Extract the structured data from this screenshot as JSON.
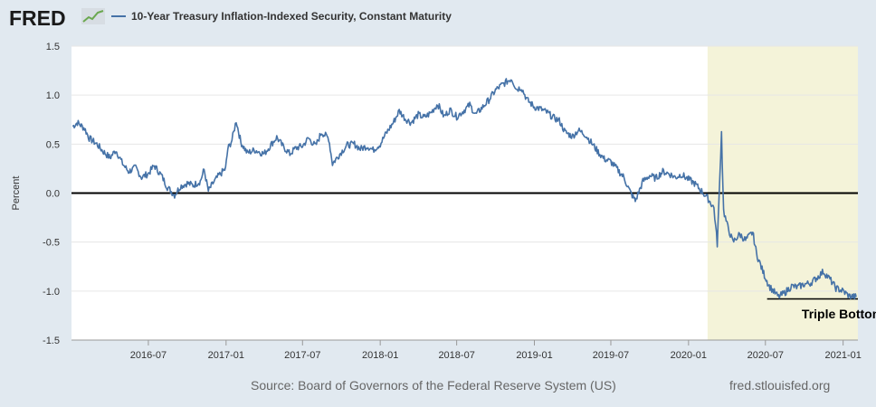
{
  "header": {
    "logo_text": "FRED",
    "logo_icon": "trend-chart-icon"
  },
  "footer": {
    "source": "Source: Board of Governors of the Federal Reserve System (US)",
    "site": "fred.stlouisfed.org"
  },
  "colors": {
    "series": "#4572a7",
    "recession_shade": "#f4f3d9",
    "plot_bg": "#ffffff",
    "page_bg": "#e1e9f0"
  },
  "chart_data": {
    "type": "line",
    "title": "",
    "xlabel": "",
    "ylabel": "Percent",
    "x_range": [
      "2016-01-01",
      "2021-02-05"
    ],
    "ylim": [
      -1.5,
      1.5
    ],
    "y_ticks": [
      1.5,
      1.0,
      0.5,
      0.0,
      -0.5,
      -1.0,
      -1.5
    ],
    "y_tick_labels": [
      "1.5",
      "1.0",
      "0.5",
      "0.0",
      "-0.5",
      "-1.0",
      "-1.5"
    ],
    "x_ticks": [
      "2016-07-01",
      "2017-01-01",
      "2017-07-01",
      "2018-01-01",
      "2018-07-01",
      "2019-01-01",
      "2019-07-01",
      "2020-01-01",
      "2020-07-01",
      "2021-01-01"
    ],
    "x_tick_labels": [
      "2016-07",
      "2017-01",
      "2017-07",
      "2018-01",
      "2018-07",
      "2019-01",
      "2019-07",
      "2020-01",
      "2020-07",
      "2021-01"
    ],
    "grid": "horizontal",
    "shaded_region": {
      "start": "2020-02-15",
      "end": "2021-02-05"
    },
    "reference_lines": [
      {
        "y": 0.0,
        "from": "2016-01-01",
        "to": "2021-02-05"
      },
      {
        "y": -1.08,
        "from": "2020-07-05",
        "to": "2021-02-05"
      }
    ],
    "annotations": [
      {
        "text": "Triple Bottom?",
        "x": "2020-09-25",
        "y": -1.28
      }
    ],
    "series": [
      {
        "name": "10-Year Treasury Inflation-Indexed Security, Constant Maturity",
        "points": [
          [
            "2016-01-04",
            0.68
          ],
          [
            "2016-01-15",
            0.72
          ],
          [
            "2016-02-01",
            0.66
          ],
          [
            "2016-02-12",
            0.56
          ],
          [
            "2016-03-01",
            0.5
          ],
          [
            "2016-03-15",
            0.43
          ],
          [
            "2016-04-01",
            0.36
          ],
          [
            "2016-04-15",
            0.44
          ],
          [
            "2016-05-01",
            0.3
          ],
          [
            "2016-05-15",
            0.22
          ],
          [
            "2016-06-01",
            0.26
          ],
          [
            "2016-06-15",
            0.16
          ],
          [
            "2016-07-01",
            0.2
          ],
          [
            "2016-07-15",
            0.28
          ],
          [
            "2016-08-01",
            0.18
          ],
          [
            "2016-08-15",
            0.06
          ],
          [
            "2016-09-01",
            -0.02
          ],
          [
            "2016-09-15",
            0.07
          ],
          [
            "2016-10-01",
            0.1
          ],
          [
            "2016-10-15",
            0.08
          ],
          [
            "2016-11-01",
            0.12
          ],
          [
            "2016-11-10",
            0.24
          ],
          [
            "2016-11-20",
            0.02
          ],
          [
            "2016-12-01",
            0.1
          ],
          [
            "2016-12-15",
            0.18
          ],
          [
            "2016-12-31",
            0.25
          ],
          [
            "2017-01-05",
            0.45
          ],
          [
            "2017-01-15",
            0.54
          ],
          [
            "2017-01-25",
            0.74
          ],
          [
            "2017-02-05",
            0.52
          ],
          [
            "2017-02-20",
            0.41
          ],
          [
            "2017-03-10",
            0.44
          ],
          [
            "2017-04-01",
            0.4
          ],
          [
            "2017-04-15",
            0.48
          ],
          [
            "2017-05-01",
            0.57
          ],
          [
            "2017-05-15",
            0.48
          ],
          [
            "2017-06-01",
            0.4
          ],
          [
            "2017-06-15",
            0.46
          ],
          [
            "2017-07-01",
            0.48
          ],
          [
            "2017-07-15",
            0.56
          ],
          [
            "2017-08-01",
            0.48
          ],
          [
            "2017-08-15",
            0.62
          ],
          [
            "2017-09-01",
            0.56
          ],
          [
            "2017-09-10",
            0.3
          ],
          [
            "2017-10-01",
            0.42
          ],
          [
            "2017-10-15",
            0.49
          ],
          [
            "2017-11-01",
            0.5
          ],
          [
            "2017-11-15",
            0.45
          ],
          [
            "2017-12-01",
            0.48
          ],
          [
            "2017-12-15",
            0.44
          ],
          [
            "2018-01-01",
            0.5
          ],
          [
            "2018-01-15",
            0.61
          ],
          [
            "2018-02-01",
            0.72
          ],
          [
            "2018-02-15",
            0.84
          ],
          [
            "2018-03-01",
            0.76
          ],
          [
            "2018-03-15",
            0.72
          ],
          [
            "2018-04-01",
            0.8
          ],
          [
            "2018-04-15",
            0.77
          ],
          [
            "2018-05-01",
            0.82
          ],
          [
            "2018-05-17",
            0.91
          ],
          [
            "2018-06-01",
            0.78
          ],
          [
            "2018-06-15",
            0.85
          ],
          [
            "2018-07-01",
            0.78
          ],
          [
            "2018-07-15",
            0.83
          ],
          [
            "2018-08-01",
            0.9
          ],
          [
            "2018-08-15",
            0.8
          ],
          [
            "2018-09-01",
            0.88
          ],
          [
            "2018-09-15",
            0.95
          ],
          [
            "2018-10-01",
            1.05
          ],
          [
            "2018-10-15",
            1.1
          ],
          [
            "2018-11-01",
            1.15
          ],
          [
            "2018-11-08",
            1.17
          ],
          [
            "2018-11-20",
            1.06
          ],
          [
            "2018-12-01",
            1.08
          ],
          [
            "2018-12-15",
            0.95
          ],
          [
            "2019-01-01",
            0.88
          ],
          [
            "2019-01-15",
            0.86
          ],
          [
            "2019-02-01",
            0.82
          ],
          [
            "2019-02-15",
            0.77
          ],
          [
            "2019-03-01",
            0.74
          ],
          [
            "2019-03-15",
            0.62
          ],
          [
            "2019-04-01",
            0.58
          ],
          [
            "2019-04-15",
            0.64
          ],
          [
            "2019-05-01",
            0.6
          ],
          [
            "2019-05-15",
            0.52
          ],
          [
            "2019-06-01",
            0.42
          ],
          [
            "2019-06-15",
            0.35
          ],
          [
            "2019-07-01",
            0.32
          ],
          [
            "2019-07-15",
            0.25
          ],
          [
            "2019-08-01",
            0.16
          ],
          [
            "2019-08-15",
            0.02
          ],
          [
            "2019-08-28",
            -0.08
          ],
          [
            "2019-09-15",
            0.12
          ],
          [
            "2019-10-01",
            0.18
          ],
          [
            "2019-10-15",
            0.15
          ],
          [
            "2019-11-01",
            0.22
          ],
          [
            "2019-11-15",
            0.2
          ],
          [
            "2019-12-01",
            0.16
          ],
          [
            "2019-12-15",
            0.19
          ],
          [
            "2020-01-01",
            0.14
          ],
          [
            "2020-01-15",
            0.1
          ],
          [
            "2020-02-01",
            0.02
          ],
          [
            "2020-02-15",
            -0.05
          ],
          [
            "2020-03-01",
            -0.15
          ],
          [
            "2020-03-09",
            -0.52
          ],
          [
            "2020-03-13",
            -0.08
          ],
          [
            "2020-03-19",
            0.62
          ],
          [
            "2020-03-24",
            -0.18
          ],
          [
            "2020-04-01",
            -0.32
          ],
          [
            "2020-04-15",
            -0.5
          ],
          [
            "2020-05-01",
            -0.42
          ],
          [
            "2020-05-15",
            -0.48
          ],
          [
            "2020-06-01",
            -0.4
          ],
          [
            "2020-06-10",
            -0.62
          ],
          [
            "2020-06-25",
            -0.8
          ],
          [
            "2020-07-10",
            -0.95
          ],
          [
            "2020-08-01",
            -1.06
          ],
          [
            "2020-08-15",
            -1.02
          ],
          [
            "2020-09-01",
            -0.95
          ],
          [
            "2020-09-15",
            -0.96
          ],
          [
            "2020-10-01",
            -0.93
          ],
          [
            "2020-10-15",
            -0.92
          ],
          [
            "2020-11-01",
            -0.86
          ],
          [
            "2020-11-15",
            -0.8
          ],
          [
            "2020-12-01",
            -0.88
          ],
          [
            "2020-12-15",
            -0.97
          ],
          [
            "2021-01-01",
            -1.0
          ],
          [
            "2021-01-15",
            -1.05
          ],
          [
            "2021-02-01",
            -1.06
          ]
        ]
      }
    ]
  }
}
